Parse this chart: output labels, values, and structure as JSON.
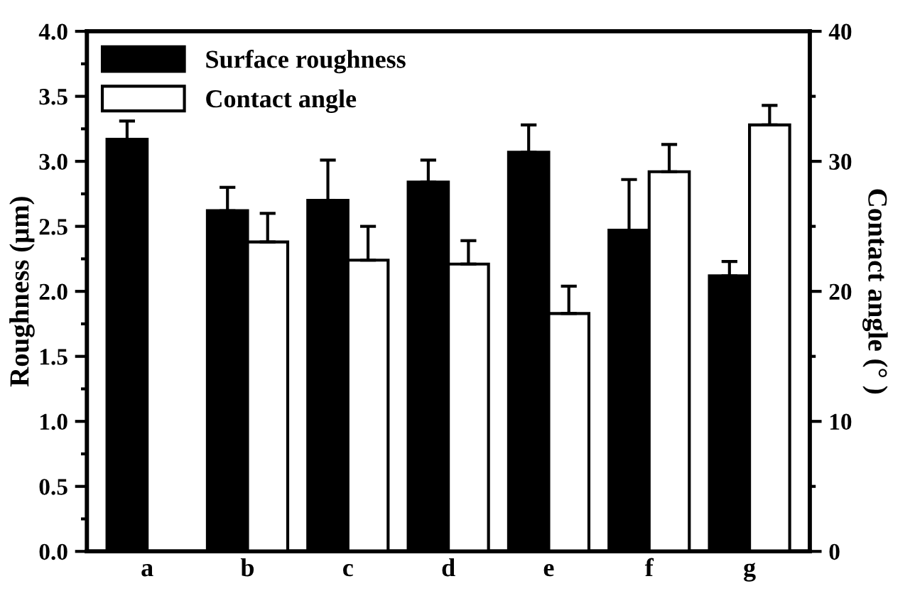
{
  "chart_data": {
    "type": "bar",
    "categories": [
      "a",
      "b",
      "c",
      "d",
      "e",
      "f",
      "g"
    ],
    "ylabel": "Roughness (μm)",
    "y2label": "Contact angle (° )",
    "ylim": [
      0,
      4.0
    ],
    "yticks": [
      {
        "value": 0,
        "label": "0.0"
      },
      {
        "value": 0.5,
        "label": "0.5"
      },
      {
        "value": 1,
        "label": "1.0"
      },
      {
        "value": 1.5,
        "label": "1.5"
      },
      {
        "value": 2,
        "label": "2.0"
      },
      {
        "value": 2.5,
        "label": "2.5"
      },
      {
        "value": 3,
        "label": "3.0"
      },
      {
        "value": 3.5,
        "label": "3.5"
      },
      {
        "value": 4,
        "label": "4.0"
      }
    ],
    "y2lim": [
      0,
      40
    ],
    "y2ticks": [
      0,
      10,
      20,
      30,
      40
    ],
    "legend": "top left",
    "grid": false,
    "series": [
      {
        "name": "Surface roughness",
        "color": "#000000",
        "values": [
          3.17,
          2.62,
          2.7,
          2.84,
          3.07,
          2.47,
          2.12
        ],
        "errors": [
          [
            3.17,
            3.31
          ],
          [
            2.62,
            2.8
          ],
          [
            2.7,
            3.01
          ],
          [
            2.84,
            3.01
          ],
          [
            3.07,
            3.28
          ],
          [
            2.47,
            2.86
          ],
          [
            2.12,
            2.23
          ]
        ]
      },
      {
        "name": "Contact angle",
        "color": "#ffffff",
        "axis": "y2",
        "values": [
          null,
          23.8,
          22.4,
          22.1,
          18.3,
          29.2,
          32.8
        ],
        "errors": [
          null,
          [
            23.8,
            26.0
          ],
          [
            22.4,
            25.0
          ],
          [
            22.1,
            23.9
          ],
          [
            18.3,
            20.4
          ],
          [
            29.2,
            31.3
          ],
          [
            32.8,
            34.3
          ]
        ]
      }
    ]
  }
}
